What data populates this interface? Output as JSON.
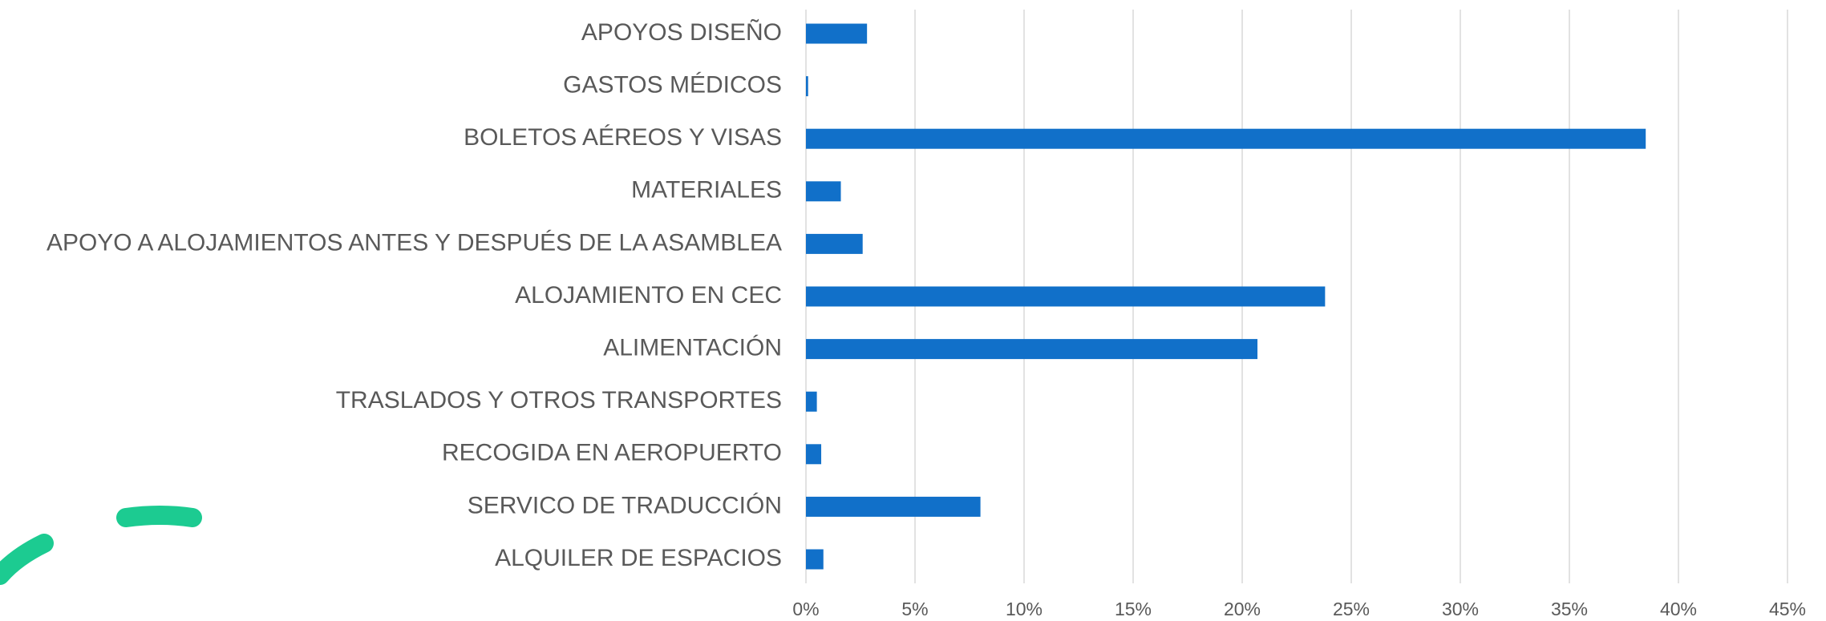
{
  "chart_data": {
    "type": "barh",
    "categories": [
      "APOYOS DISEÑO",
      "GASTOS MÉDICOS",
      "BOLETOS AÉREOS Y VISAS",
      "MATERIALES",
      "APOYO A ALOJAMIENTOS ANTES Y DESPUÉS DE LA ASAMBLEA",
      "ALOJAMIENTO EN CEC",
      "ALIMENTACIÓN",
      "TRASLADOS Y OTROS TRANSPORTES",
      "RECOGIDA EN AEROPUERTO",
      "SERVICO DE TRADUCCIÓN",
      "ALQUILER DE ESPACIOS"
    ],
    "values": [
      2.8,
      0.1,
      38.5,
      1.6,
      2.6,
      23.8,
      20.7,
      0.5,
      0.7,
      8.0,
      0.8
    ],
    "color": "#1170c9",
    "xlim": [
      0,
      45
    ],
    "xticks": [
      {
        "value": 0,
        "label": "0%"
      },
      {
        "value": 5,
        "label": "5%"
      },
      {
        "value": 10,
        "label": "10%"
      },
      {
        "value": 15,
        "label": "15%"
      },
      {
        "value": 20,
        "label": "20%"
      },
      {
        "value": 25,
        "label": "25%"
      },
      {
        "value": 30,
        "label": "30%"
      },
      {
        "value": 35,
        "label": "35%"
      },
      {
        "value": 40,
        "label": "40%"
      },
      {
        "value": 45,
        "label": "45%"
      }
    ],
    "grid": true
  }
}
